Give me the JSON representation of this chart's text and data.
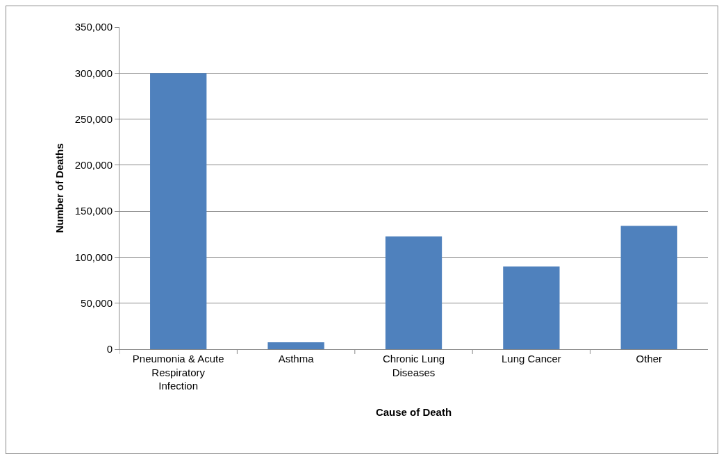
{
  "chart_data": {
    "type": "bar",
    "xlabel": "Cause of Death",
    "ylabel": "Number of Deaths",
    "categories": [
      "Pneumonia & Acute Respiratory Infection",
      "Asthma",
      "Chronic Lung Diseases",
      "Lung Cancer",
      "Other"
    ],
    "values": [
      300000,
      7500,
      122500,
      90000,
      134000
    ],
    "color": "#4f81bd",
    "ylim": [
      0,
      350000
    ],
    "yticks": [
      {
        "value": 0,
        "label": "0"
      },
      {
        "value": 50000,
        "label": "50,000"
      },
      {
        "value": 100000,
        "label": "100,000"
      },
      {
        "value": 150000,
        "label": "150,000"
      },
      {
        "value": 200000,
        "label": "200,000"
      },
      {
        "value": 250000,
        "label": "250,000"
      },
      {
        "value": 300000,
        "label": "300,000"
      },
      {
        "value": 350000,
        "label": "350,000"
      }
    ],
    "grid": "y"
  }
}
